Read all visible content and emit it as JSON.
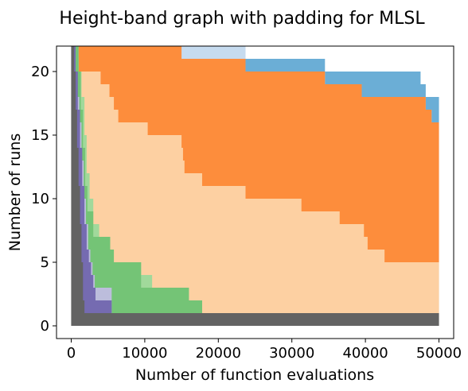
{
  "chart_data": {
    "type": "area",
    "title": "Height-band graph with padding for MLSL",
    "xlabel": "Number of function evaluations",
    "ylabel": "Number of runs",
    "xlim": [
      -2000,
      52000
    ],
    "ylim": [
      -1,
      22
    ],
    "xticks": [
      0,
      10000,
      20000,
      30000,
      40000,
      50000
    ],
    "yticks": [
      0,
      5,
      10,
      15,
      20
    ],
    "grid": false,
    "legend": "none",
    "total_runs": 22,
    "x_max": 50000,
    "bands": [
      {
        "color": "#636363",
        "upper": [
          [
            0,
            22
          ],
          [
            400,
            20
          ],
          [
            600,
            17
          ],
          [
            800,
            14
          ],
          [
            1000,
            11
          ],
          [
            1200,
            8
          ],
          [
            1400,
            5
          ],
          [
            1600,
            2
          ],
          [
            1800,
            1
          ],
          [
            50000,
            0
          ]
        ]
      },
      {
        "color": "#756bb1",
        "upper": [
          [
            0,
            22
          ],
          [
            600,
            20
          ],
          [
            900,
            17
          ],
          [
            1200,
            14
          ],
          [
            1500,
            11
          ],
          [
            1800,
            8
          ],
          [
            2100,
            6
          ],
          [
            2400,
            5
          ],
          [
            2700,
            4
          ],
          [
            3000,
            3
          ],
          [
            3300,
            2
          ],
          [
            5500,
            1
          ],
          [
            9000,
            0
          ],
          [
            50000,
            0
          ]
        ]
      },
      {
        "color": "#bcbddc",
        "upper": [
          [
            0,
            22
          ],
          [
            500,
            20
          ],
          [
            800,
            18
          ],
          [
            1100,
            16
          ],
          [
            1400,
            13
          ],
          [
            1700,
            10
          ],
          [
            2000,
            8
          ],
          [
            2300,
            6
          ],
          [
            2600,
            5
          ],
          [
            2900,
            4
          ],
          [
            3200,
            3
          ],
          [
            5500,
            2
          ],
          [
            5500,
            1
          ],
          [
            9000,
            0
          ],
          [
            50000,
            0
          ]
        ]
      },
      {
        "color": "#74c476",
        "upper": [
          [
            0,
            22
          ],
          [
            1000,
            20
          ],
          [
            1300,
            17
          ],
          [
            1600,
            14
          ],
          [
            1900,
            11
          ],
          [
            2200,
            9
          ],
          [
            3000,
            7
          ],
          [
            5300,
            6
          ],
          [
            5800,
            5
          ],
          [
            9500,
            4
          ],
          [
            9500,
            3
          ],
          [
            16000,
            2
          ],
          [
            17800,
            1
          ],
          [
            17800,
            0
          ],
          [
            50000,
            0
          ]
        ]
      },
      {
        "color": "#a1d99b",
        "upper": [
          [
            0,
            22
          ],
          [
            600,
            21
          ],
          [
            1000,
            20
          ],
          [
            1400,
            18
          ],
          [
            1800,
            15
          ],
          [
            2100,
            12
          ],
          [
            2500,
            10
          ],
          [
            3000,
            8
          ],
          [
            3800,
            6
          ],
          [
            5500,
            5
          ],
          [
            9500,
            4
          ],
          [
            11000,
            3
          ],
          [
            16000,
            2
          ],
          [
            17800,
            1
          ],
          [
            17800,
            0
          ],
          [
            50000,
            0
          ]
        ]
      },
      {
        "color": "#fdd0a2",
        "upper": [
          [
            0,
            22
          ],
          [
            1000,
            20
          ],
          [
            1500,
            20
          ],
          [
            4000,
            19
          ],
          [
            5200,
            18
          ],
          [
            5800,
            17
          ],
          [
            6400,
            16
          ],
          [
            10400,
            15
          ],
          [
            15000,
            14
          ],
          [
            15200,
            13
          ],
          [
            15400,
            12
          ],
          [
            17800,
            11
          ],
          [
            23700,
            10
          ],
          [
            31300,
            9
          ],
          [
            36500,
            8
          ],
          [
            39800,
            7
          ],
          [
            40300,
            6
          ],
          [
            42600,
            5
          ],
          [
            50000,
            5
          ]
        ]
      },
      {
        "color": "#fd8d3c",
        "upper": [
          [
            0,
            22
          ],
          [
            15000,
            21
          ],
          [
            23500,
            21
          ],
          [
            23700,
            20
          ],
          [
            34500,
            19
          ],
          [
            39500,
            18
          ],
          [
            48200,
            17
          ],
          [
            49000,
            16
          ],
          [
            50000,
            16
          ]
        ]
      },
      {
        "color": "#c6dbef",
        "upper": [
          [
            0,
            22
          ],
          [
            15000,
            22
          ],
          [
            23500,
            22
          ],
          [
            23700,
            20
          ],
          [
            34500,
            19
          ],
          [
            39500,
            18
          ],
          [
            48200,
            17
          ],
          [
            49000,
            16
          ],
          [
            50000,
            16
          ]
        ]
      },
      {
        "color": "#6baed6",
        "upper": [
          [
            0,
            22
          ],
          [
            15000,
            22
          ],
          [
            23700,
            21
          ],
          [
            34500,
            20
          ],
          [
            47500,
            19
          ],
          [
            48200,
            18
          ],
          [
            50000,
            18
          ]
        ]
      }
    ]
  }
}
